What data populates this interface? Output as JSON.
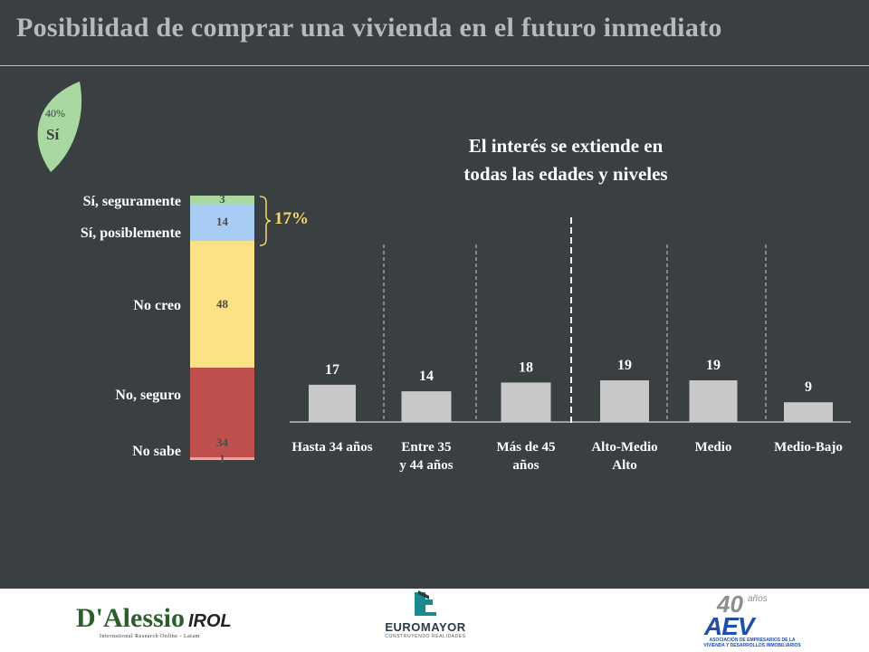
{
  "title": "Posibilidad de comprar una vivienda en el futuro inmediato",
  "leaf": {
    "percent": "40%",
    "label": "Sí"
  },
  "summary": {
    "value": "17%"
  },
  "subtitle": [
    "El interés se extiende en",
    "todas las edades y niveles"
  ],
  "colors": {
    "background": "#3a3f41",
    "bar": "#c8c8c8",
    "bracket": "#f5d86a",
    "leaf": "#a9d9a0"
  },
  "chart_data": [
    {
      "type": "bar",
      "stacked": true,
      "categories": [
        "Sí, seguramente",
        "Sí, posiblemente",
        "No creo",
        "No, seguro",
        "No sabe"
      ],
      "values": [
        3,
        14,
        48,
        34,
        1
      ],
      "colors": [
        "#a9d9a0",
        "#a8cdf5",
        "#fde187",
        "#c0504d",
        "#f4a29a"
      ],
      "value_labels": [
        "3",
        "14",
        "48",
        "34",
        "1"
      ]
    },
    {
      "type": "bar",
      "categories": [
        "Hasta 34 años",
        "Entre 35 y 44 años",
        "Más de 45 años",
        "Alto-Medio Alto",
        "Medio",
        "Medio-Bajo"
      ],
      "category_lines": [
        [
          "Hasta 34 años"
        ],
        [
          "Entre 35",
          "y 44 años"
        ],
        [
          "Más de 45",
          "años"
        ],
        [
          "Alto-Medio",
          "Alto"
        ],
        [
          "Medio"
        ],
        [
          "Medio-Bajo"
        ]
      ],
      "values": [
        17,
        14,
        18,
        19,
        19,
        9
      ],
      "value_labels": [
        "17",
        "14",
        "18",
        "19",
        "19",
        "9"
      ]
    }
  ],
  "footer": {
    "logo_left": {
      "brand": "D'Alessio",
      "suffix": "IROL",
      "tagline": "International Research Online - Latam"
    },
    "logo_center": {
      "brand": "EUROMAYOR",
      "tagline": "CONSTRUYENDO REALIDADES"
    },
    "logo_right": {
      "number": "40",
      "suffix": "años",
      "brand": "AEV",
      "tagline": "ASOCIACIÓN DE EMPRESARIOS DE LA VIVIENDA Y DESARROLLOS INMOBILIARIOS"
    }
  }
}
